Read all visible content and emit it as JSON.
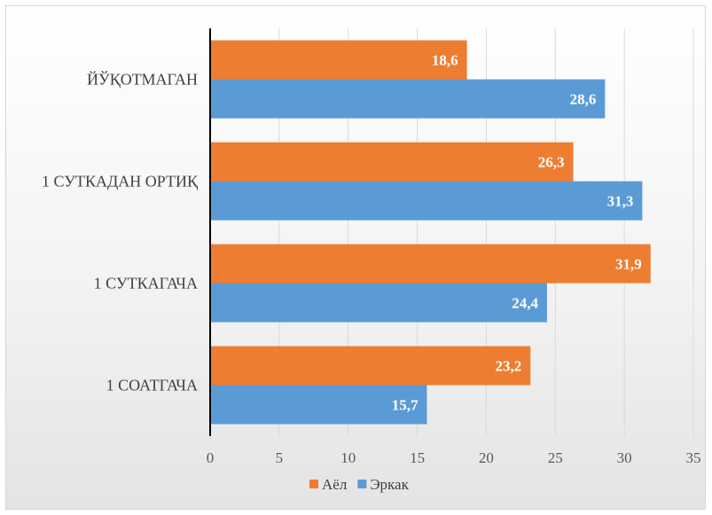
{
  "chart_data": {
    "type": "bar",
    "orientation": "horizontal",
    "categories": [
      "1 СОАТГАЧА",
      "1 СУТКАГАЧА",
      "1 СУТКАДАН ОРТИҚ",
      "ЙЎҚОТМАГАН"
    ],
    "series": [
      {
        "name": "Аёл",
        "color": "#ED7D31",
        "values": [
          23.2,
          31.9,
          26.3,
          18.6
        ],
        "labels": [
          "23,2",
          "31,9",
          "26,3",
          "18,6"
        ]
      },
      {
        "name": "Эркак",
        "color": "#5B9BD5",
        "values": [
          15.7,
          24.4,
          31.3,
          28.6
        ],
        "labels": [
          "15,7",
          "24,4",
          "31,3",
          "28,6"
        ]
      }
    ],
    "xlim": [
      0,
      35
    ],
    "xticks": [
      0,
      5,
      10,
      15,
      20,
      25,
      30,
      35
    ],
    "xtick_labels": [
      "0",
      "5",
      "10",
      "15",
      "20",
      "25",
      "30",
      "35"
    ],
    "grid": "vertical",
    "legend": "bottom",
    "title": "",
    "xlabel": "",
    "ylabel": ""
  }
}
